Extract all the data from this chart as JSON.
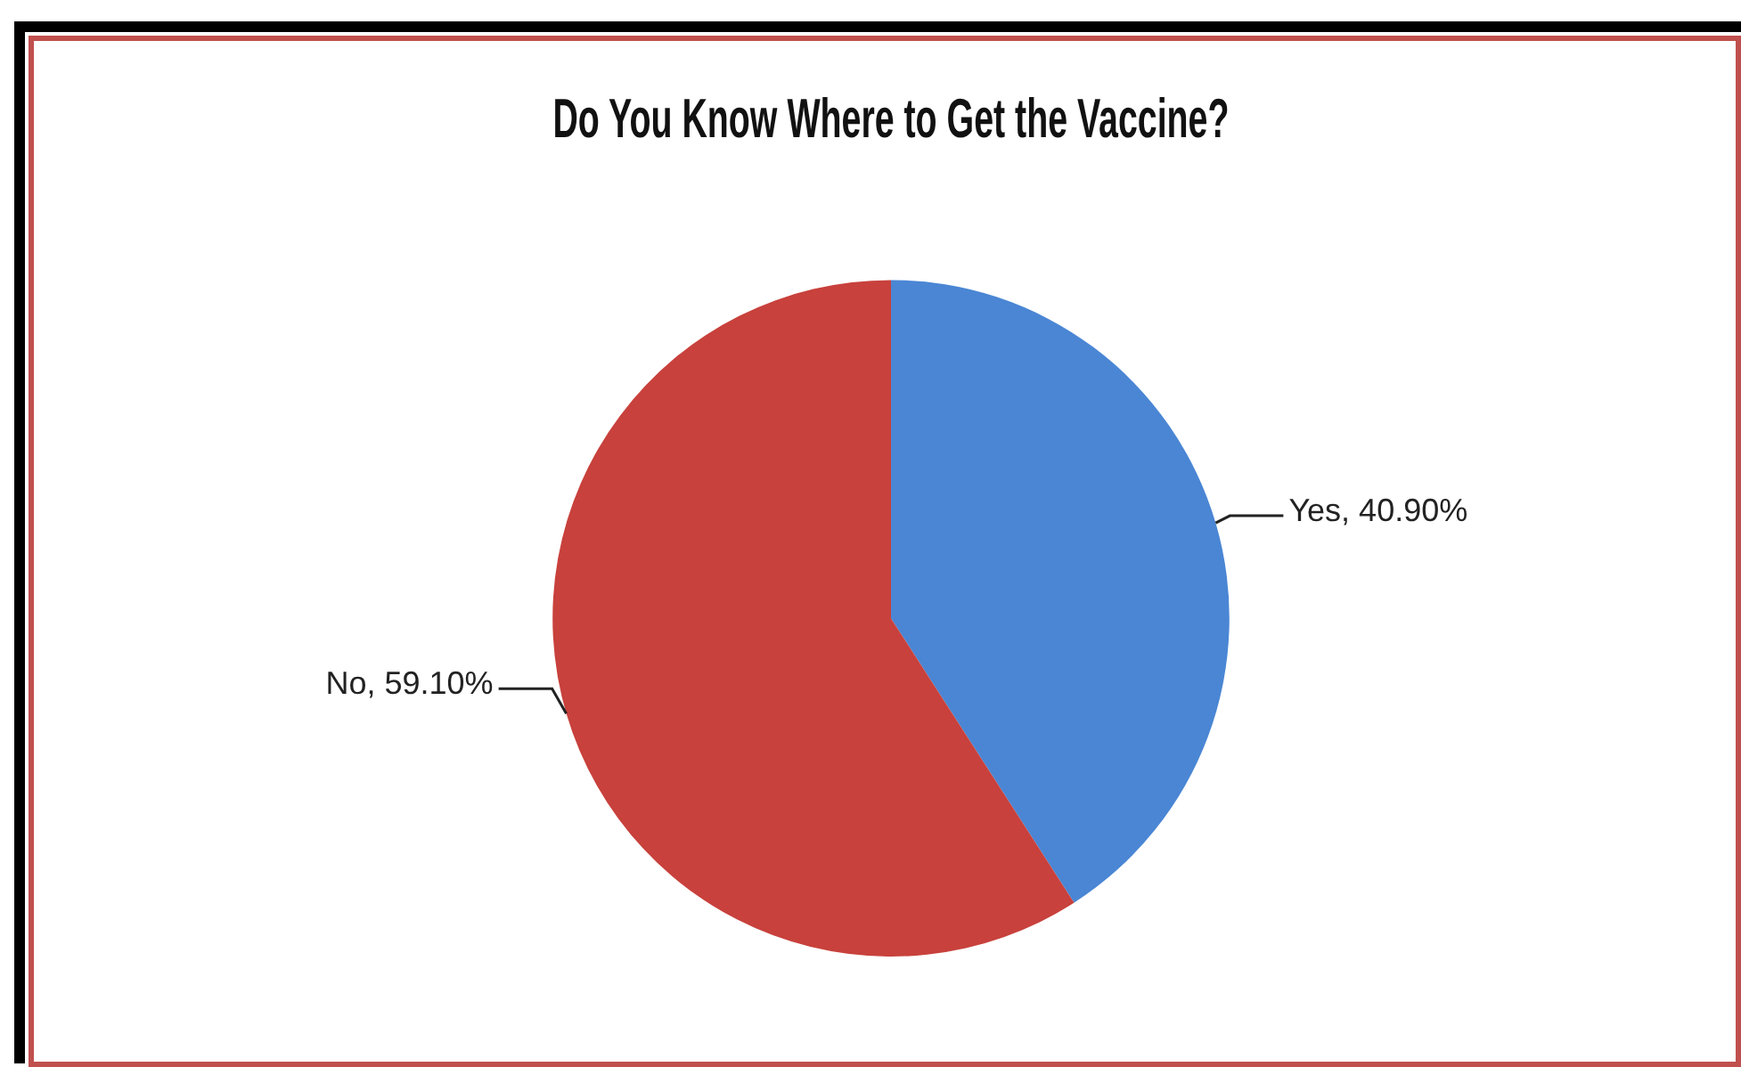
{
  "chart_data": {
    "type": "pie",
    "title": "Do You Know Where to Get the Vaccine?",
    "categories": [
      "Yes",
      "No"
    ],
    "values": [
      40.9,
      59.1
    ],
    "colors": [
      "#4a86d4",
      "#c8413c"
    ],
    "value_labels": [
      "40.90%",
      "59.10%"
    ],
    "legend": false
  }
}
